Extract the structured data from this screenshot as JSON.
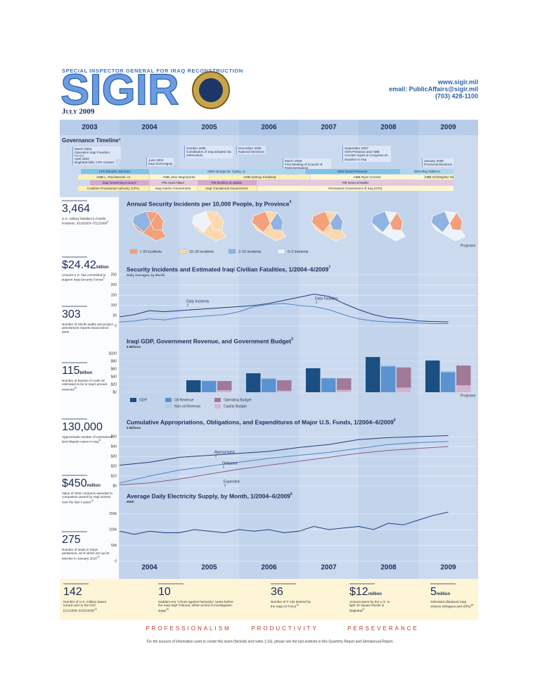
{
  "header": {
    "agency": "SPECIAL INSPECTOR GENERAL FOR IRAQ RECONSTRUCTION",
    "logo": "SIGIR",
    "website": "www.sigir.mil",
    "email": "email: PublicAffairs@sigir.mil",
    "phone": "(703) 428-1100",
    "date": "July 2009"
  },
  "years": [
    "2003",
    "2004",
    "2005",
    "2006",
    "2007",
    "2008",
    "2009"
  ],
  "governance": {
    "title": "Governance Timeline",
    "note": "1",
    "events": [
      {
        "date": "March 2003",
        "text": "Operation Iraqi Freedom begins"
      },
      {
        "date": "April 2003",
        "text": "Baghdad falls; CPA created"
      },
      {
        "date": "June 2004",
        "text": "Iraqi Sovereignty"
      },
      {
        "date": "October 2005",
        "text": "Constitution of Iraq adopted via referendum"
      },
      {
        "date": "December 2005",
        "text": "National Elections"
      },
      {
        "date": "March 2006",
        "text": "First Meeting of Council of Representatives"
      },
      {
        "date": "September 2007",
        "text": "GEN Petraeus and AMB Crocker report to Congress on situation in Iraq"
      },
      {
        "date": "January 2009",
        "text": "Provincial Elections"
      }
    ],
    "rows": [
      [
        "LTG Ricardo Sanchez",
        "GEN George W. Casey, Jr.",
        "GEN David Petraeus",
        "GEN Ray Odierno"
      ],
      [
        "AMB L. Paul Bremer, III",
        "AMB John Negroponte",
        "AMB Zalmay Khalilzad",
        "AMB Ryan Crocker",
        "AMB Christopher Hill"
      ],
      [
        "Iraqi Governing Council",
        "PM Ayad Allawi",
        "PM Ibrahim al-Jaafari",
        "PM Nouri al-Maliki"
      ],
      [
        "Coalition Provisional Authority (CPA)",
        "Iraqi Interim Government",
        "Iraqi Transitional Government",
        "Permanent Government of Iraq (GOI)"
      ]
    ]
  },
  "facts": [
    {
      "value": "3,464",
      "unit": "",
      "text": "U.S. military fatalities in hostile incidents, 3/19/2003–7/21/2009",
      "note": "8"
    },
    {
      "value": "$24.42",
      "unit": "billion",
      "text": "Amount U.S. has committed to support Iraqi Security Forces",
      "note": "9"
    },
    {
      "value": "303",
      "unit": "",
      "text": "Number of SIGIR audits and project assessment reports issued since 2004",
      "note": ""
    },
    {
      "value": "115",
      "unit": "billion",
      "text": "Number of barrels of crude oil estimated to be in Iraq's proved reserves",
      "note": "10"
    },
    {
      "value": "130,000",
      "unit": "",
      "text": "Approximate number of unresolved land dispute cases in Iraq",
      "note": "11"
    },
    {
      "value": "$450",
      "unit": "million",
      "text": "Value of GRD contracts awarded to companies owned by Iraqi women over the last 4 years",
      "note": "12"
    },
    {
      "value": "275",
      "unit": "",
      "text": "Number of seats in Iraq's parliament, all of which are up for election in January 2010",
      "note": "13"
    }
  ],
  "bottom_facts": [
    {
      "value": "142",
      "unit": "",
      "text": "Number of U.S. military bases turned over to the GOI (1/1/2009–6/15/2009)",
      "note": "14"
    },
    {
      "value": "10",
      "unit": "",
      "text": "Saddam-era \"crimes against humanity\" cases before the Iraqi High Tribunal, either at trial or investigation stage",
      "note": "15"
    },
    {
      "value": "36",
      "unit": "",
      "text": "Number of F-16s desired by the Iraqi Air Force",
      "note": "16"
    },
    {
      "value": "$12",
      "unit": "million",
      "text": "Amount spent by the U.S. to light 10 square blocks in Baghdad",
      "note": "17"
    },
    {
      "value": "5",
      "unit": "million",
      "text": "estimated displaced Iraqi citizens (refugees and IDPs)",
      "note": "18"
    }
  ],
  "footer": {
    "mottos": [
      "PROFESSIONALISM",
      "PRODUCTIVITY",
      "PERSEVERANCE"
    ],
    "note": "For the sources of information used to create this insert (factoids and notes 1-16), please see the last endnote in this Quarterly Report and Semiannual Report."
  },
  "chart_data": [
    {
      "type": "map",
      "title": "Annual Security Incidents per 10,000 People, by Province",
      "note": "4",
      "annotation": "Projected",
      "legend": [
        {
          "label": "> 20 incidents",
          "color": "#f3a07c"
        },
        {
          "label": "10–20 incidents",
          "color": "#fbd8ad"
        },
        {
          "label": "2–10 incidents",
          "color": "#8fb3e2"
        },
        {
          "label": "0–2 incidents",
          "color": "#eef3fb"
        }
      ]
    },
    {
      "type": "line",
      "title": "Security Incidents and Estimated Iraqi Civilian Fatalities, 1/2004–6/2009",
      "note": "7",
      "subtitle": "Daily Averages, by Month",
      "xlim": [
        2004,
        2010
      ],
      "ylim": [
        0,
        250
      ],
      "yticks": [
        0,
        50,
        100,
        150,
        200,
        250
      ],
      "grid": true,
      "x": [
        2004,
        2004.25,
        2004.5,
        2004.75,
        2005,
        2005.25,
        2005.5,
        2005.75,
        2006,
        2006.25,
        2006.5,
        2006.75,
        2007,
        2007.25,
        2007.5,
        2007.75,
        2008,
        2008.25,
        2008.5,
        2008.75,
        2009,
        2009.25,
        2009.5
      ],
      "series": [
        {
          "name": "Daily Incidents",
          "color": "#1b3f7a",
          "values": [
            45,
            55,
            75,
            70,
            75,
            80,
            85,
            90,
            95,
            100,
            110,
            125,
            140,
            155,
            145,
            110,
            80,
            55,
            40,
            35,
            25,
            22,
            20
          ]
        },
        {
          "name": "Daily Fatalities",
          "color": "#4a86c8",
          "values": [
            20,
            25,
            35,
            30,
            40,
            45,
            50,
            55,
            70,
            95,
            105,
            110,
            100,
            95,
            80,
            55,
            35,
            25,
            20,
            18,
            15,
            12,
            12
          ]
        }
      ]
    },
    {
      "type": "bar",
      "title": "Iraqi GDP, Government Revenue, and Government Budget",
      "note": "3",
      "subtitle": "$ Billions",
      "annotation": "Projected",
      "xlim": [
        2004,
        2010
      ],
      "ylim": [
        0,
        100
      ],
      "yticks": [
        {
          "value": 0,
          "label": "$0"
        },
        {
          "value": 20,
          "label": "$20"
        },
        {
          "value": 40,
          "label": "$40"
        },
        {
          "value": 60,
          "label": "$60"
        },
        {
          "value": 80,
          "label": "$80"
        },
        {
          "value": 100,
          "label": "$100"
        }
      ],
      "x": [
        2005,
        2006,
        2007,
        2008,
        2009
      ],
      "series": [
        {
          "name": "GDP",
          "color": "#1b4f82",
          "stack": "gdp",
          "values": [
            31,
            49,
            62,
            91,
            82
          ]
        },
        {
          "name": "Oil Revenue",
          "color": "#5b93d1",
          "stack": "revenue",
          "values": [
            29,
            35,
            36,
            67,
            52
          ]
        },
        {
          "name": "Non-oil Revenue",
          "color": "#aecbe9",
          "stack": "revenue",
          "values": [
            2,
            3,
            2,
            4,
            3
          ]
        },
        {
          "name": "Capital Budget",
          "color": "#d4b4cc",
          "stack": "budget",
          "values": [
            5,
            4,
            6,
            12,
            18
          ]
        },
        {
          "name": "Operating Budget",
          "color": "#a07a98",
          "stack": "budget",
          "values": [
            24,
            27,
            30,
            52,
            51
          ]
        }
      ]
    },
    {
      "type": "line",
      "title": "Cumulative Appropriations, Obligations, and Expenditures of Major U.S. Funds, 1/2004–6/2009",
      "note": "6",
      "subtitle": "$ Billions",
      "xlim": [
        2004,
        2010
      ],
      "ylim": [
        0,
        50
      ],
      "grid": true,
      "yticks": [
        {
          "value": 0,
          "label": "$0"
        },
        {
          "value": 10,
          "label": "$10"
        },
        {
          "value": 20,
          "label": "$20"
        },
        {
          "value": 30,
          "label": "$30"
        },
        {
          "value": 40,
          "label": "$40"
        },
        {
          "value": 50,
          "label": "$50"
        }
      ],
      "x": [
        2004,
        2004.5,
        2005,
        2005.5,
        2006,
        2006.5,
        2007,
        2007.5,
        2008,
        2008.5,
        2009,
        2009.5
      ],
      "series": [
        {
          "name": "Appropriated",
          "color": "#1f3f74",
          "values": [
            21,
            24,
            29,
            31,
            33,
            35,
            39,
            42,
            47,
            49,
            50,
            51
          ]
        },
        {
          "name": "Obligated",
          "color": "#4a86c8",
          "values": [
            3,
            10,
            16,
            20,
            24,
            28,
            31,
            34,
            38,
            42,
            44,
            45
          ]
        },
        {
          "name": "Expended",
          "color": "#8a5f8a",
          "values": [
            1,
            3,
            7,
            12,
            17,
            21,
            25,
            29,
            33,
            36,
            38,
            40
          ]
        }
      ]
    },
    {
      "type": "line",
      "title": "Average Daily Electricity Supply, by Month, 1/2004–6/2009",
      "note": "5",
      "subtitle": "MWh",
      "xlim": [
        2004,
        2010
      ],
      "ylim": [
        0,
        160000
      ],
      "grid": true,
      "yticks": [
        0,
        {
          "value": 50000,
          "label": "50k"
        },
        {
          "value": 100000,
          "label": "100k"
        },
        {
          "value": 150000,
          "label": "150k"
        }
      ],
      "x": [
        2004,
        2004.25,
        2004.5,
        2004.75,
        2005,
        2005.25,
        2005.5,
        2005.75,
        2006,
        2006.25,
        2006.5,
        2006.75,
        2007,
        2007.25,
        2007.5,
        2007.75,
        2008,
        2008.25,
        2008.5,
        2008.75,
        2009,
        2009.25,
        2009.5
      ],
      "series": [
        {
          "color": "#1b3f7a",
          "values": [
            95000,
            85000,
            95000,
            90000,
            90000,
            100000,
            95000,
            90000,
            100000,
            95000,
            100000,
            90000,
            95000,
            110000,
            100000,
            105000,
            110000,
            100000,
            120000,
            115000,
            130000,
            145000,
            155000
          ]
        }
      ]
    }
  ]
}
